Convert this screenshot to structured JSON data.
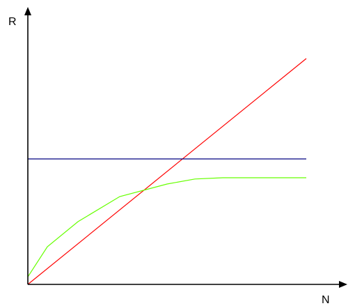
{
  "chart_data": {
    "type": "line",
    "xlabel": "N",
    "ylabel": "R",
    "xlim": [
      0,
      100
    ],
    "ylim": [
      0,
      100
    ],
    "grid": false,
    "legend": "none",
    "series": [
      {
        "color": "#ff0000",
        "x": [
          0,
          100
        ],
        "y": [
          0,
          90
        ]
      },
      {
        "color": "#000080",
        "x": [
          0,
          100
        ],
        "y": [
          50,
          50
        ]
      },
      {
        "color": "#66ff00",
        "x": [
          0,
          7,
          18,
          33,
          50,
          60,
          70,
          100
        ],
        "y": [
          3,
          15,
          25,
          35,
          40,
          42,
          42.5,
          42.5
        ]
      }
    ]
  }
}
